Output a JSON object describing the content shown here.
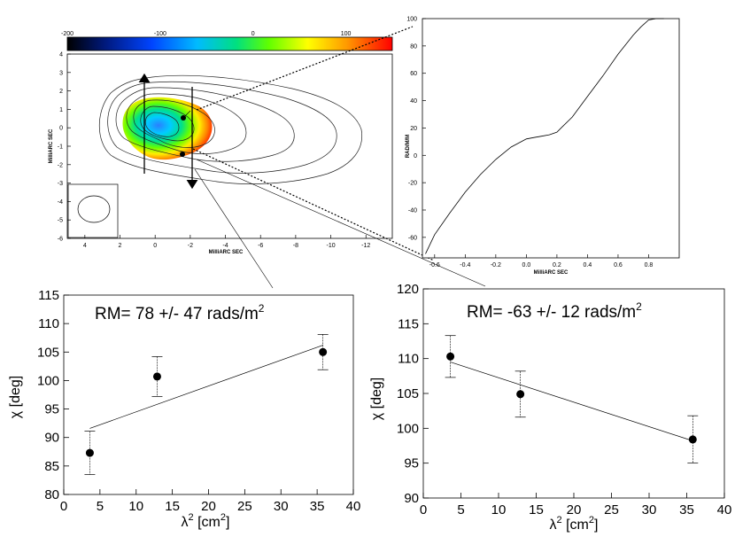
{
  "chart_data": [
    {
      "id": "rm-map",
      "type": "heatmap",
      "title": "",
      "colorbar": {
        "ticks": [
          "-200",
          "-100",
          "0",
          "100"
        ],
        "range": [
          -200,
          150
        ]
      },
      "xlabel": "MilliARC SEC",
      "ylabel": "MilliARC SEC",
      "x_ticks": [
        "4",
        "2",
        "0",
        "-2",
        "-4",
        "-6",
        "-8",
        "-10",
        "-12"
      ],
      "y_ticks": [
        "4",
        "3",
        "2",
        "1",
        "0",
        "-1",
        "-2",
        "-3",
        "-4",
        "-5",
        "-6"
      ],
      "xlim": [
        5,
        -13.5
      ],
      "ylim": [
        -6,
        4
      ]
    },
    {
      "id": "slice-profile",
      "type": "line",
      "xlabel": "MilliARC SEC",
      "ylabel": "RAD/M/M",
      "x_ticks": [
        "-0.6",
        "-0.4",
        "-0.2",
        "0.0",
        "0.2",
        "0.4",
        "0.6",
        "0.8"
      ],
      "y_ticks": [
        "100",
        "80",
        "60",
        "40",
        "20",
        "0",
        "-20",
        "-40",
        "-60"
      ],
      "xlim": [
        -0.68,
        1.0
      ],
      "ylim": [
        -75,
        100
      ],
      "x": [
        -0.66,
        -0.6,
        -0.5,
        -0.4,
        -0.3,
        -0.2,
        -0.1,
        0.0,
        0.05,
        0.1,
        0.15,
        0.2,
        0.3,
        0.4,
        0.5,
        0.6,
        0.7,
        0.75,
        0.8,
        0.85,
        0.9
      ],
      "y": [
        -72,
        -58,
        -42,
        -27,
        -14,
        -3,
        6,
        12,
        13,
        14,
        15,
        17,
        28,
        43,
        58,
        74,
        88,
        94,
        99,
        100,
        100
      ]
    },
    {
      "id": "rm-fit-left",
      "type": "scatter",
      "title_prefix": "RM= 78 +/- 47  rads/m",
      "title_sup": "2",
      "xlabel_main": "λ",
      "xlabel_sup": "2",
      "xlabel_unit": " [cm",
      "xlabel_unit_sup": "2",
      "xlabel_end": "]",
      "ylabel": "χ [deg]",
      "xlim": [
        0,
        40
      ],
      "ylim": [
        80,
        115
      ],
      "x_ticks": [
        "0",
        "5",
        "10",
        "15",
        "20",
        "25",
        "30",
        "35",
        "40"
      ],
      "y_ticks": [
        "80",
        "85",
        "90",
        "95",
        "100",
        "105",
        "110",
        "115"
      ],
      "x": [
        3.6,
        12.9,
        35.8
      ],
      "y": [
        87.3,
        100.7,
        105
      ],
      "err": [
        3.8,
        3.5,
        3.1
      ],
      "fit": {
        "x": [
          3.6,
          35.8
        ],
        "y": [
          91.6,
          106.2
        ]
      }
    },
    {
      "id": "rm-fit-right",
      "type": "scatter",
      "title_prefix": "RM= -63 +/- 12  rads/m",
      "title_sup": "2",
      "xlabel_main": "λ",
      "xlabel_sup": "2",
      "xlabel_unit": " [cm",
      "xlabel_unit_sup": "2",
      "xlabel_end": "]",
      "ylabel": "χ [deg]",
      "xlim": [
        0,
        40
      ],
      "ylim": [
        90,
        120
      ],
      "x_ticks": [
        "0",
        "5",
        "10",
        "15",
        "20",
        "25",
        "30",
        "35",
        "40"
      ],
      "y_ticks": [
        "90",
        "95",
        "100",
        "105",
        "110",
        "115",
        "120"
      ],
      "x": [
        3.6,
        12.9,
        35.8
      ],
      "y": [
        110.3,
        104.9,
        98.4
      ],
      "err": [
        3.0,
        3.3,
        3.4
      ],
      "fit": {
        "x": [
          3.6,
          35.8
        ],
        "y": [
          109.5,
          98.2
        ]
      }
    }
  ]
}
